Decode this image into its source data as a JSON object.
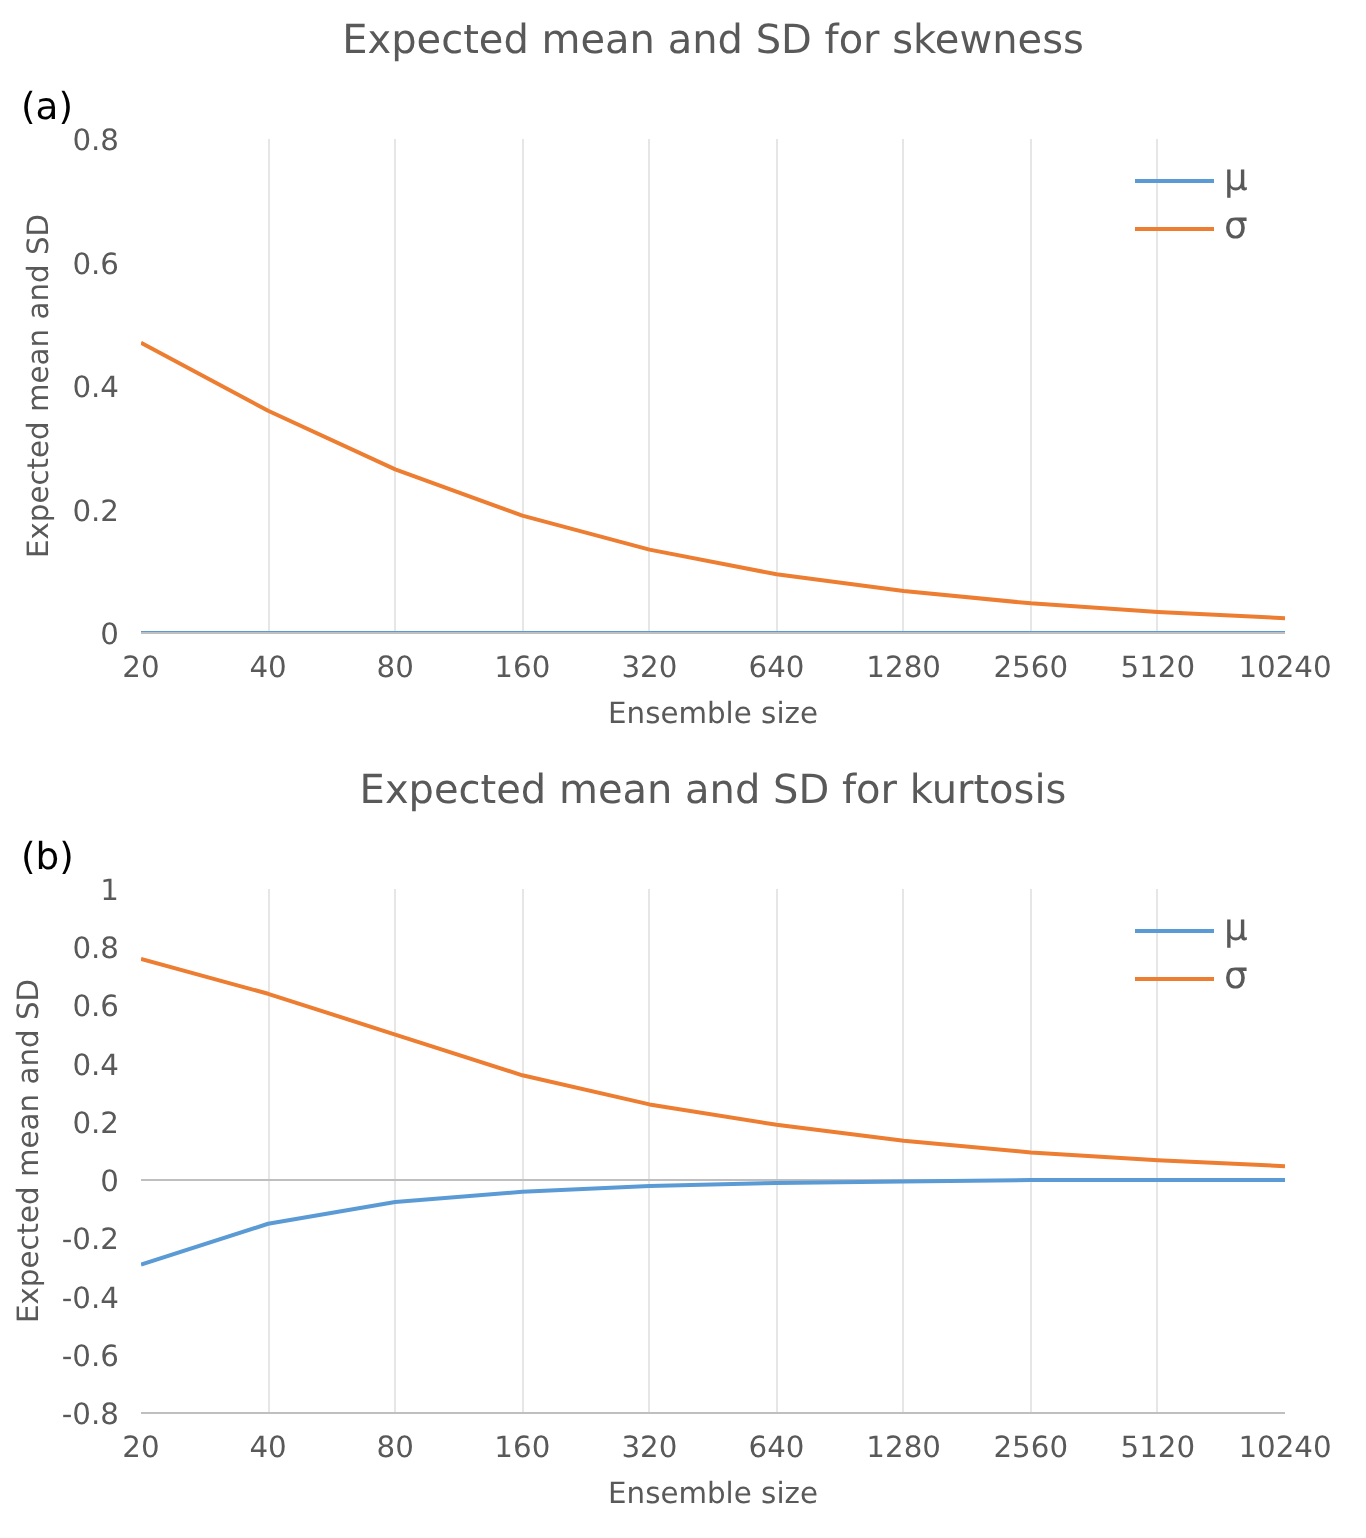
{
  "chart_data": [
    {
      "type": "line",
      "title": "Expected mean and SD for skewness",
      "xlabel": "Ensemble size",
      "ylabel": "Expected mean and SD",
      "annotations": [
        "(a)"
      ],
      "log": "x",
      "x": [
        20,
        40,
        80,
        160,
        320,
        640,
        1280,
        2560,
        5120,
        10240
      ],
      "series": [
        {
          "name": "μ",
          "color": "#5b9bd5",
          "values": [
            0,
            0,
            0,
            0,
            0,
            0,
            0,
            0,
            0,
            0
          ]
        },
        {
          "name": "σ",
          "color": "#ed7d31",
          "values": [
            0.47,
            0.36,
            0.265,
            0.19,
            0.135,
            0.095,
            0.068,
            0.048,
            0.034,
            0.024
          ]
        }
      ],
      "xlim": [
        20,
        10240
      ],
      "xticks": [
        20,
        40,
        80,
        160,
        320,
        640,
        1280,
        2560,
        5120,
        10240
      ],
      "ylim": [
        0,
        0.8
      ],
      "yticks": [
        0,
        0.2,
        0.4,
        0.6,
        0.8
      ],
      "grid": "x",
      "legend": "top right"
    },
    {
      "type": "line",
      "title": "Expected mean and SD for kurtosis",
      "xlabel": "Ensemble size",
      "ylabel": "Expected mean and SD",
      "annotations": [
        "(b)"
      ],
      "log": "x",
      "x": [
        20,
        40,
        80,
        160,
        320,
        640,
        1280,
        2560,
        5120,
        10240
      ],
      "series": [
        {
          "name": "μ",
          "color": "#5b9bd5",
          "values": [
            -0.29,
            -0.15,
            -0.075,
            -0.04,
            -0.02,
            -0.01,
            -0.005,
            0,
            0,
            0
          ]
        },
        {
          "name": "σ",
          "color": "#ed7d31",
          "values": [
            0.76,
            0.64,
            0.5,
            0.36,
            0.26,
            0.19,
            0.135,
            0.095,
            0.068,
            0.048
          ]
        }
      ],
      "xlim": [
        20,
        10240
      ],
      "xticks": [
        20,
        40,
        80,
        160,
        320,
        640,
        1280,
        2560,
        5120,
        10240
      ],
      "ylim": [
        -0.8,
        1
      ],
      "yticks": [
        -0.8,
        -0.6,
        -0.4,
        -0.2,
        0,
        0.2,
        0.4,
        0.6,
        0.8,
        1
      ],
      "grid": "x",
      "legend": "top right"
    }
  ]
}
